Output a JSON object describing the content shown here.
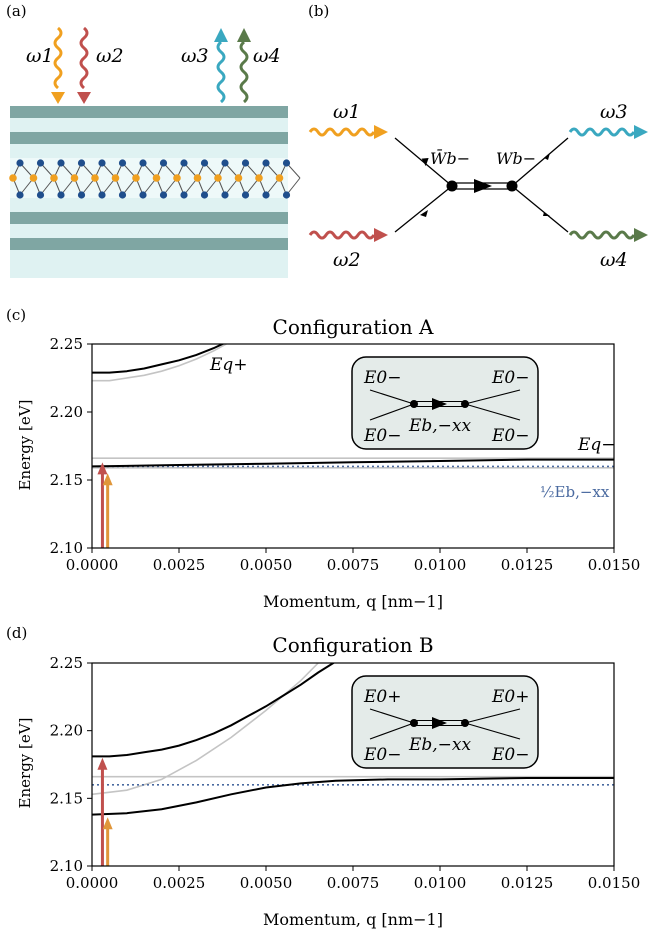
{
  "panel_labels": [
    "(a)",
    "(b)",
    "(c)",
    "(d)"
  ],
  "panel_a": {
    "omega_labels": [
      "ω1",
      "ω2",
      "ω3",
      "ω4"
    ],
    "colors": {
      "omega1": "#f0a020",
      "omega2": "#c0504d",
      "omega3": "#3aa8c0",
      "omega4": "#5a7a4a",
      "layer_dark": "#7fa6a3",
      "layer_light": "#dff2f2",
      "atom_orange": "#f0a020",
      "atom_blue": "#1f4e8c"
    }
  },
  "panel_b": {
    "omega_labels": [
      "ω1",
      "ω2",
      "ω3",
      "ω4"
    ],
    "vertex_left": "W̄b−",
    "vertex_right": "Wb−"
  },
  "chart_data": [
    {
      "type": "line",
      "title": "Configuration A",
      "xlabel": "Momentum, q [nm−1]",
      "ylabel": "Energy [eV]",
      "xlim": [
        0.0,
        0.015
      ],
      "ylim": [
        2.1,
        2.25
      ],
      "xticks": [
        "0.0000",
        "0.0025",
        "0.0050",
        "0.0075",
        "0.0100",
        "0.0125",
        "0.0150"
      ],
      "yticks": [
        "2.10",
        "2.15",
        "2.20",
        "2.25"
      ],
      "curve_labels": {
        "upper": "Eq+",
        "lower": "Eq−",
        "dotted": "½Eb,−xx"
      },
      "series": [
        {
          "name": "Eq+",
          "style": "black",
          "x": [
            0,
            0.0005,
            0.001,
            0.0015,
            0.002,
            0.0025,
            0.003,
            0.0035,
            0.004
          ],
          "y": [
            2.229,
            2.229,
            2.23,
            2.232,
            2.235,
            2.238,
            2.242,
            2.247,
            2.253
          ]
        },
        {
          "name": "Eq−",
          "style": "black",
          "x": [
            0,
            0.0025,
            0.005,
            0.0075,
            0.01,
            0.0125,
            0.015
          ],
          "y": [
            2.16,
            2.161,
            2.162,
            2.163,
            2.164,
            2.165,
            2.165
          ]
        },
        {
          "style": "gray",
          "x": [
            0,
            0.0005,
            0.001,
            0.0015,
            0.002,
            0.0025,
            0.003,
            0.0035,
            0.004
          ],
          "y": [
            2.223,
            2.223,
            2.225,
            2.227,
            2.23,
            2.234,
            2.239,
            2.245,
            2.252
          ]
        },
        {
          "style": "gray",
          "x": [
            0,
            0.015
          ],
          "y": [
            2.166,
            2.166
          ]
        },
        {
          "style": "gray",
          "x": [
            0,
            0.015
          ],
          "y": [
            2.159,
            2.159
          ]
        },
        {
          "style": "dotted",
          "x": [
            0,
            0.015
          ],
          "y": [
            2.16,
            2.16
          ]
        }
      ],
      "arrows": [
        {
          "x": 0.0003,
          "y_top": 2.163,
          "color": "#c0504d"
        },
        {
          "x": 0.00045,
          "y_top": 2.155,
          "color": "#e0963a"
        }
      ],
      "inset": {
        "top_left": "E0−",
        "top_right": "E0−",
        "bottom_left": "E0−",
        "bottom_right": "E0−",
        "center": "Eb,−xx"
      }
    },
    {
      "type": "line",
      "title": "Configuration B",
      "xlabel": "Momentum, q [nm−1]",
      "ylabel": "Energy [eV]",
      "xlim": [
        0.0,
        0.015
      ],
      "ylim": [
        2.1,
        2.25
      ],
      "xticks": [
        "0.0000",
        "0.0025",
        "0.0050",
        "0.0075",
        "0.0100",
        "0.0125",
        "0.0150"
      ],
      "yticks": [
        "2.10",
        "2.15",
        "2.20",
        "2.25"
      ],
      "series": [
        {
          "style": "black",
          "x": [
            0,
            0.0005,
            0.001,
            0.0015,
            0.002,
            0.0025,
            0.003,
            0.0035,
            0.004,
            0.0045,
            0.005,
            0.0055,
            0.006,
            0.0065,
            0.007
          ],
          "y": [
            2.181,
            2.181,
            2.182,
            2.184,
            2.186,
            2.189,
            2.193,
            2.198,
            2.204,
            2.211,
            2.218,
            2.226,
            2.234,
            2.243,
            2.251
          ]
        },
        {
          "style": "black",
          "x": [
            0,
            0.001,
            0.002,
            0.003,
            0.004,
            0.005,
            0.006,
            0.007,
            0.0085,
            0.01,
            0.0125,
            0.015
          ],
          "y": [
            2.138,
            2.139,
            2.142,
            2.147,
            2.153,
            2.158,
            2.161,
            2.163,
            2.164,
            2.164,
            2.165,
            2.165
          ]
        },
        {
          "style": "gray",
          "x": [
            0,
            0.001,
            0.002,
            0.003,
            0.004,
            0.005,
            0.006,
            0.0065
          ],
          "y": [
            2.153,
            2.156,
            2.164,
            2.178,
            2.195,
            2.215,
            2.237,
            2.25
          ]
        },
        {
          "style": "gray",
          "x": [
            0,
            0.015
          ],
          "y": [
            2.166,
            2.166
          ]
        },
        {
          "style": "dotted",
          "x": [
            0,
            0.015
          ],
          "y": [
            2.16,
            2.16
          ]
        }
      ],
      "arrows": [
        {
          "x": 0.0003,
          "y_top": 2.18,
          "color": "#c0504d"
        },
        {
          "x": 0.00045,
          "y_top": 2.136,
          "color": "#e0963a"
        }
      ],
      "inset": {
        "top_left": "E0+",
        "top_right": "E0+",
        "bottom_left": "E0−",
        "bottom_right": "E0−",
        "center": "Eb,−xx"
      }
    }
  ]
}
